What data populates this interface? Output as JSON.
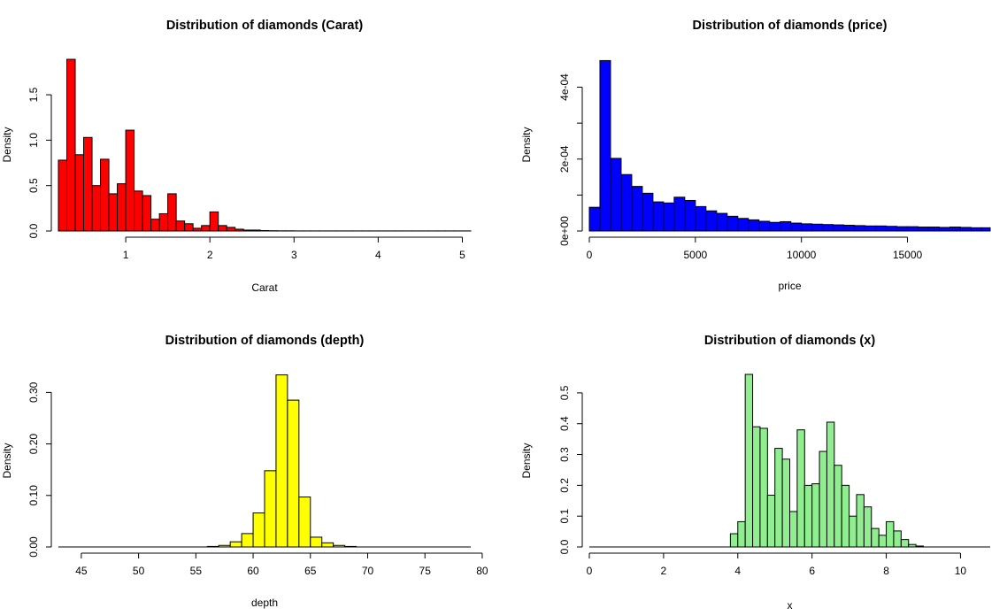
{
  "chart_data": [
    {
      "type": "bar",
      "title": "Distribution of diamonds (Carat)",
      "xlabel": "Carat",
      "ylabel": "Density",
      "fill": "#ff0000",
      "xlim": [
        0.2,
        5.1
      ],
      "ylim": [
        0,
        1.9
      ],
      "xticks": [
        1,
        2,
        3,
        4,
        5
      ],
      "xtick_labels": [
        "1",
        "2",
        "3",
        "4",
        "5"
      ],
      "yticks": [
        0,
        0.5,
        1.0,
        1.5
      ],
      "ytick_labels": [
        "0.0",
        "0.5",
        "1.0",
        "1.5"
      ],
      "bin_start": 0.2,
      "bin_width": 0.1,
      "values": [
        0.78,
        1.89,
        0.84,
        1.03,
        0.5,
        0.79,
        0.41,
        0.52,
        1.11,
        0.44,
        0.39,
        0.13,
        0.19,
        0.41,
        0.11,
        0.08,
        0.03,
        0.06,
        0.21,
        0.06,
        0.04,
        0.02,
        0.01,
        0.01,
        0.005,
        0.003,
        0.002,
        0.002,
        0.001,
        0.001,
        0.001,
        0.001,
        0.001,
        0.001,
        0.001,
        0.001,
        0.001,
        0.001,
        0.001,
        0.001,
        0.001,
        0.001,
        0.001,
        0.001,
        0.001,
        0.001,
        0.001,
        0.001,
        0.001
      ]
    },
    {
      "type": "bar",
      "title": "Distribution of diamonds (price)",
      "xlabel": "price",
      "ylabel": "Density",
      "fill": "#0000ff",
      "xlim": [
        0,
        18900
      ],
      "ylim": [
        0,
        0.00048
      ],
      "xticks": [
        0,
        5000,
        10000,
        15000
      ],
      "xtick_labels": [
        "0",
        "5000",
        "10000",
        "15000"
      ],
      "yticks": [
        0,
        0.0001,
        0.0002,
        0.0003,
        0.0004
      ],
      "ytick_labels": [
        "0e+00",
        "",
        "2e-04",
        "",
        "4e-04"
      ],
      "bin_start": 0,
      "bin_width": 500,
      "values": [
        6.6e-05,
        0.000474,
        0.000202,
        0.000157,
        0.000124,
        0.000105,
        8.1e-05,
        7.8e-05,
        9.4e-05,
        8.5e-05,
        6.8e-05,
        5.6e-05,
        4.9e-05,
        4.1e-05,
        3.5e-05,
        3.1e-05,
        2.7e-05,
        2.4e-05,
        2.6e-05,
        2.2e-05,
        2e-05,
        1.9e-05,
        1.8e-05,
        1.7e-05,
        1.6e-05,
        1.5e-05,
        1.4e-05,
        1.4e-05,
        1.3e-05,
        1.2e-05,
        1.2e-05,
        1.1e-05,
        1.1e-05,
        1e-05,
        1.1e-05,
        1e-05,
        9e-06,
        9e-06
      ]
    },
    {
      "type": "bar",
      "title": "Distribution of diamonds (depth)",
      "xlabel": "depth",
      "ylabel": "Density",
      "fill": "#ffff00",
      "xlim": [
        43,
        79
      ],
      "ylim": [
        0,
        0.335
      ],
      "xticks": [
        45,
        50,
        55,
        60,
        65,
        70,
        75,
        80
      ],
      "xtick_labels": [
        "45",
        "50",
        "55",
        "60",
        "65",
        "70",
        "75",
        "80"
      ],
      "yticks": [
        0,
        0.1,
        0.2,
        0.3
      ],
      "ytick_labels": [
        "0.00",
        "0.10",
        "0.20",
        "0.30"
      ],
      "bin_start": 43,
      "bin_width": 1,
      "values": [
        0,
        0,
        0,
        0,
        0,
        0,
        0,
        0,
        0,
        0,
        0,
        0,
        0,
        0.001,
        0.003,
        0.01,
        0.026,
        0.066,
        0.148,
        0.334,
        0.285,
        0.097,
        0.019,
        0.008,
        0.003,
        0.001,
        0,
        0,
        0,
        0,
        0,
        0,
        0,
        0,
        0,
        0
      ]
    },
    {
      "type": "bar",
      "title": "Distribution of diamonds (x)",
      "xlabel": "x",
      "ylabel": "Density",
      "fill": "#90ee90",
      "xlim": [
        0,
        10.8
      ],
      "ylim": [
        0,
        0.56
      ],
      "xticks": [
        0,
        2,
        4,
        6,
        8,
        10
      ],
      "xtick_labels": [
        "0",
        "2",
        "4",
        "6",
        "8",
        "10"
      ],
      "yticks": [
        0,
        0.1,
        0.2,
        0.3,
        0.4,
        0.5
      ],
      "ytick_labels": [
        "0.0",
        "0.1",
        "0.2",
        "0.3",
        "0.4",
        "0.5"
      ],
      "bin_start": 0,
      "bin_width": 0.2,
      "values": [
        0,
        0,
        0,
        0,
        0,
        0,
        0,
        0,
        0,
        0,
        0,
        0,
        0,
        0,
        0,
        0,
        0,
        0,
        0,
        0.043,
        0.082,
        0.56,
        0.39,
        0.385,
        0.168,
        0.32,
        0.285,
        0.115,
        0.38,
        0.2,
        0.205,
        0.31,
        0.405,
        0.265,
        0.2,
        0.1,
        0.17,
        0.13,
        0.06,
        0.038,
        0.082,
        0.052,
        0.024,
        0.008,
        0.003,
        0,
        0,
        0,
        0,
        0,
        0,
        0,
        0,
        0
      ]
    }
  ]
}
